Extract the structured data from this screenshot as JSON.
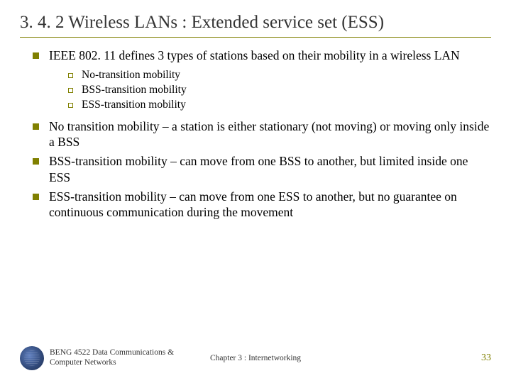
{
  "title": "3. 4. 2 Wireless LANs : Extended service set (ESS)",
  "bullets": {
    "b0": "IEEE 802. 11 defines 3 types of stations based on their mobility in a wireless LAN",
    "sub": {
      "s0": "No-transition mobility",
      "s1": "BSS-transition mobility",
      "s2": "ESS-transition mobility"
    },
    "b1": "No transition mobility – a station is either stationary (not moving) or moving only inside a BSS",
    "b2": "BSS-transition mobility – can move from one BSS to another, but limited inside one ESS",
    "b3": "ESS-transition mobility – can move from one ESS to another, but no guarantee on continuous communication during the movement"
  },
  "footer": {
    "left_line1": "BENG 4522 Data Communications &",
    "left_line2": "Computer Networks",
    "center": "Chapter 3 : Internetworking",
    "page": "33"
  },
  "colors": {
    "accent": "#808000",
    "text": "#000000",
    "title": "#333333"
  }
}
